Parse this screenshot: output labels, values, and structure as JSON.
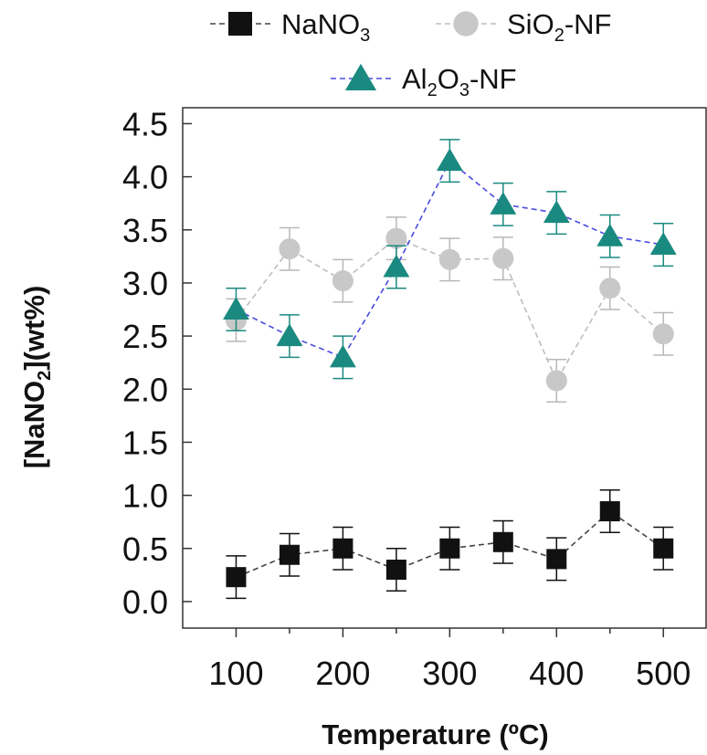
{
  "chart_data": {
    "type": "line",
    "xlabel": "Temperature (ºC)",
    "ylabel": {
      "main": "[NaNO",
      "sub": "2",
      "tail": "](wt%)"
    },
    "xlim": [
      50,
      540
    ],
    "ylim": [
      -0.25,
      4.65
    ],
    "xticks": [
      100,
      200,
      300,
      400,
      500
    ],
    "xtick_labels": [
      "100",
      "200",
      "300",
      "400",
      "500"
    ],
    "xminor_ticks": [
      150,
      250,
      350,
      450
    ],
    "yticks": [
      0.0,
      0.5,
      1.0,
      1.5,
      2.0,
      2.5,
      3.0,
      3.5,
      4.0,
      4.5
    ],
    "ytick_labels": [
      "0.0",
      "0.5",
      "1.0",
      "1.5",
      "2.0",
      "2.5",
      "3.0",
      "3.5",
      "4.0",
      "4.5"
    ],
    "grid": false,
    "legend_position": "top",
    "x": [
      100,
      150,
      200,
      250,
      300,
      350,
      400,
      450,
      500
    ],
    "series": [
      {
        "name_parts": [
          {
            "t": "NaNO"
          },
          {
            "t": "3",
            "sub": true
          }
        ],
        "marker": "square",
        "color": "#111111",
        "line_color": "#444444",
        "values": [
          0.23,
          0.44,
          0.5,
          0.3,
          0.5,
          0.56,
          0.4,
          0.85,
          0.5
        ],
        "errors": [
          0.2,
          0.2,
          0.2,
          0.2,
          0.2,
          0.2,
          0.2,
          0.2,
          0.2
        ]
      },
      {
        "name_parts": [
          {
            "t": "SiO"
          },
          {
            "t": "2",
            "sub": true
          },
          {
            "t": "-NF"
          }
        ],
        "marker": "circle",
        "color": "#c8c8c8",
        "line_color": "#bdbdbd",
        "values": [
          2.65,
          3.32,
          3.02,
          3.42,
          3.22,
          3.23,
          2.08,
          2.95,
          2.52
        ],
        "errors": [
          0.2,
          0.2,
          0.2,
          0.2,
          0.2,
          0.2,
          0.2,
          0.2,
          0.2
        ]
      },
      {
        "name_parts": [
          {
            "t": "Al"
          },
          {
            "t": "2",
            "sub": true
          },
          {
            "t": "O"
          },
          {
            "t": "3",
            "sub": true
          },
          {
            "t": "-NF"
          }
        ],
        "marker": "triangle",
        "color": "#1a8a80",
        "line_color": "#4a4ae0",
        "values": [
          2.75,
          2.5,
          2.3,
          3.15,
          4.15,
          3.74,
          3.66,
          3.44,
          3.36
        ],
        "errors": [
          0.2,
          0.2,
          0.2,
          0.2,
          0.2,
          0.2,
          0.2,
          0.2,
          0.2
        ]
      }
    ]
  }
}
